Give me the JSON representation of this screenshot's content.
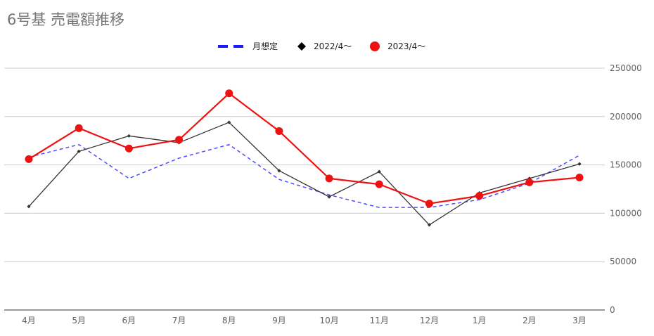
{
  "chart_data": {
    "type": "line",
    "title": "6号基  売電額推移",
    "categories": [
      "4月",
      "5月",
      "6月",
      "7月",
      "8月",
      "9月",
      "10月",
      "11月",
      "12月",
      "1月",
      "2月",
      "3月"
    ],
    "series": [
      {
        "name": "月想定",
        "style": "dashed",
        "marker": "none",
        "color": "#4d4dff",
        "values": [
          158000,
          171000,
          136000,
          157000,
          171000,
          135000,
          119000,
          106000,
          106000,
          114000,
          131000,
          160000
        ]
      },
      {
        "name": "2022/4〜",
        "style": "solid",
        "marker": "diamond",
        "color": "#333333",
        "values": [
          107000,
          164000,
          180000,
          173000,
          194000,
          144000,
          117000,
          143000,
          88000,
          121000,
          136000,
          151000
        ]
      },
      {
        "name": "2023/4〜",
        "style": "solid",
        "marker": "circle",
        "color": "#ee1111",
        "values": [
          156000,
          188000,
          167000,
          176000,
          224000,
          185000,
          136000,
          130000,
          110000,
          118000,
          132000,
          137000
        ]
      }
    ],
    "ylim": [
      0,
      250000
    ],
    "yticks": [
      0,
      50000,
      100000,
      150000,
      200000,
      250000
    ],
    "ytick_labels": [
      "0",
      "50000",
      "100000",
      "150000",
      "200000",
      "250000"
    ],
    "y_axis_side": "right",
    "grid": true,
    "legend_position": "top-center",
    "xlabel": "",
    "ylabel": ""
  }
}
